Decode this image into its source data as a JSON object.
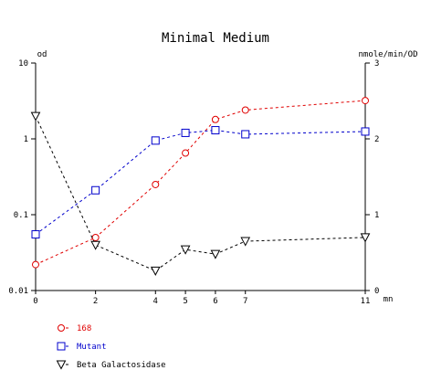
{
  "chart_data": {
    "type": "line",
    "title": "Minimal Medium",
    "xlabel": "mn",
    "ylabel_left": "od",
    "ylabel_right": "nmole/min/OD",
    "x_ticks": [
      0,
      2,
      4,
      5,
      6,
      7,
      11
    ],
    "x_tick_labels": [
      "0",
      "2",
      "4",
      "5",
      "6",
      "7",
      "11"
    ],
    "xlim": [
      0,
      11
    ],
    "y_left": {
      "scale": "log",
      "lim": [
        0.01,
        10
      ],
      "ticks": [
        0.01,
        0.1,
        1,
        10
      ],
      "tick_labels": [
        "0.01",
        "0.1",
        "1",
        "10"
      ]
    },
    "y_right": {
      "scale": "linear",
      "lim": [
        0,
        3
      ],
      "ticks": [
        0,
        1,
        2,
        3
      ],
      "tick_labels": [
        "0",
        "1",
        "2",
        "3"
      ]
    },
    "grid": false,
    "legend_position": "bottom-left",
    "series": [
      {
        "name": "168",
        "axis": "left",
        "color": "#e00000",
        "marker": "circle",
        "x": [
          0,
          2,
          4,
          5,
          6,
          7,
          11
        ],
        "y": [
          0.022,
          0.05,
          0.25,
          0.65,
          1.8,
          2.4,
          3.2
        ]
      },
      {
        "name": "Mutant",
        "axis": "left",
        "color": "#0000cc",
        "marker": "square",
        "x": [
          0,
          2,
          4,
          5,
          6,
          7,
          11
        ],
        "y": [
          0.055,
          0.21,
          0.95,
          1.2,
          1.3,
          1.15,
          1.25
        ]
      },
      {
        "name": "Beta Galactosidase",
        "axis": "right",
        "color": "#000000",
        "marker": "triangle-down",
        "x": [
          0,
          2,
          4,
          5,
          6,
          7,
          11
        ],
        "y": [
          2.3,
          0.6,
          0.26,
          0.54,
          0.48,
          0.65,
          0.7
        ]
      }
    ]
  }
}
